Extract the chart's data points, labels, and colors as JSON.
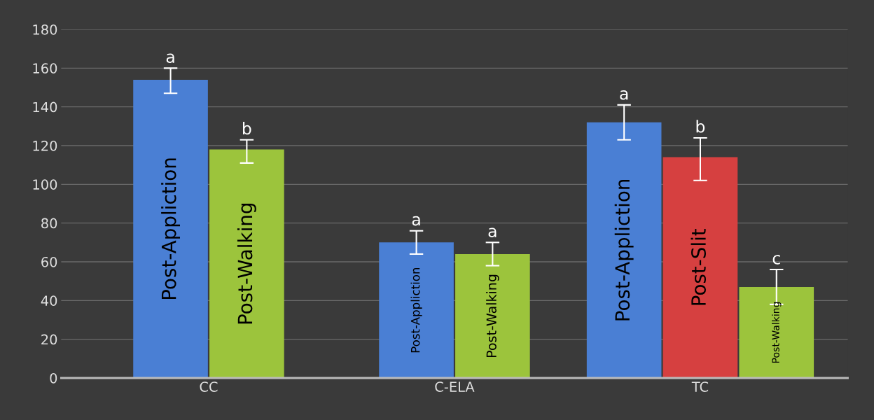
{
  "chart_data": {
    "type": "bar",
    "categories": [
      "CC",
      "C-ELA",
      "TC"
    ],
    "series": [
      {
        "name": "Post-Appliction",
        "color": "#4a7fd4",
        "values": [
          154,
          70,
          132
        ],
        "errors": [
          [
            147,
            160
          ],
          [
            64,
            76
          ],
          [
            123,
            141
          ]
        ]
      },
      {
        "name": "Post-Slit",
        "color": "#d64040",
        "values": [
          null,
          null,
          114
        ],
        "errors": [
          null,
          null,
          [
            102,
            124
          ]
        ]
      },
      {
        "name": "Post-Walking",
        "color": "#9cc43c",
        "values": [
          118,
          64,
          47
        ],
        "errors": [
          [
            111,
            123
          ],
          [
            58,
            70
          ],
          [
            38,
            56
          ]
        ]
      }
    ],
    "annotations": [
      "a",
      "b",
      "a",
      "a",
      "a",
      "b",
      "c"
    ],
    "ylim": [
      0,
      180
    ],
    "yticks": [
      0,
      20,
      40,
      60,
      80,
      100,
      120,
      140,
      160,
      180
    ],
    "grid": "y",
    "legend": false
  }
}
